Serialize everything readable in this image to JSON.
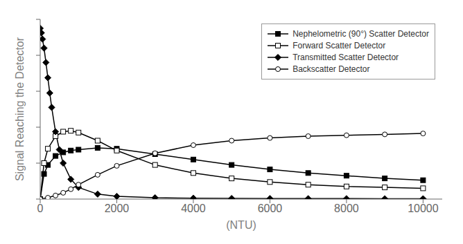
{
  "chart_data": {
    "type": "line",
    "xlabel": "(NTU)",
    "ylabel": "Signal Reaching the Detector",
    "xlim": [
      0,
      10500
    ],
    "ylim": [
      0,
      2.0
    ],
    "xticks": [
      0,
      2000,
      4000,
      6000,
      8000,
      10000
    ],
    "yticks": [
      0.0,
      0.4,
      0.8,
      1.2,
      1.6,
      2.0
    ],
    "tick_labels": "x",
    "grid": false,
    "legend": "upper right",
    "series": [
      {
        "name": "Nephelometric (90°) Scatter Detector",
        "color": "#000000",
        "marker": "square",
        "x": [
          0,
          100,
          200,
          400,
          600,
          800,
          1000,
          1500,
          2000,
          3000,
          4000,
          5000,
          6000,
          7000,
          8000,
          9000,
          10000
        ],
        "values": [
          0.0,
          0.28,
          0.38,
          0.48,
          0.52,
          0.54,
          0.55,
          0.57,
          0.56,
          0.5,
          0.44,
          0.38,
          0.33,
          0.29,
          0.26,
          0.23,
          0.21
        ]
      },
      {
        "name": "Forward Scatter Detector",
        "color": "#000000",
        "marker": "open_square",
        "x": [
          0,
          100,
          200,
          400,
          600,
          800,
          1000,
          1500,
          2000,
          3000,
          4000,
          5000,
          6000,
          7000,
          8000,
          9000,
          10000
        ],
        "values": [
          0.0,
          0.4,
          0.56,
          0.7,
          0.75,
          0.76,
          0.74,
          0.65,
          0.54,
          0.38,
          0.29,
          0.23,
          0.19,
          0.16,
          0.14,
          0.13,
          0.12
        ]
      },
      {
        "name": "Transmitted Scatter Detector",
        "color": "#000000",
        "marker": "diamond",
        "x": [
          0,
          30,
          60,
          100,
          150,
          200,
          250,
          300,
          400,
          500,
          600,
          800,
          1000,
          1500,
          2000,
          3000,
          4000,
          5000,
          6000,
          7000,
          8000,
          9000,
          10000
        ],
        "values": [
          1.9,
          1.85,
          1.78,
          1.68,
          1.52,
          1.35,
          1.18,
          1.02,
          0.75,
          0.55,
          0.4,
          0.22,
          0.13,
          0.055,
          0.03,
          0.015,
          0.01,
          0.007,
          0.006,
          0.005,
          0.005,
          0.004,
          0.004
        ]
      },
      {
        "name": "Backscatter Detector",
        "color": "#000000",
        "marker": "open_circle",
        "x": [
          0,
          200,
          400,
          600,
          800,
          1000,
          1500,
          2000,
          3000,
          4000,
          5000,
          6000,
          7000,
          8000,
          9000,
          10000
        ],
        "values": [
          0.0,
          0.015,
          0.04,
          0.07,
          0.11,
          0.16,
          0.27,
          0.37,
          0.51,
          0.6,
          0.65,
          0.68,
          0.7,
          0.71,
          0.72,
          0.73
        ]
      }
    ]
  }
}
